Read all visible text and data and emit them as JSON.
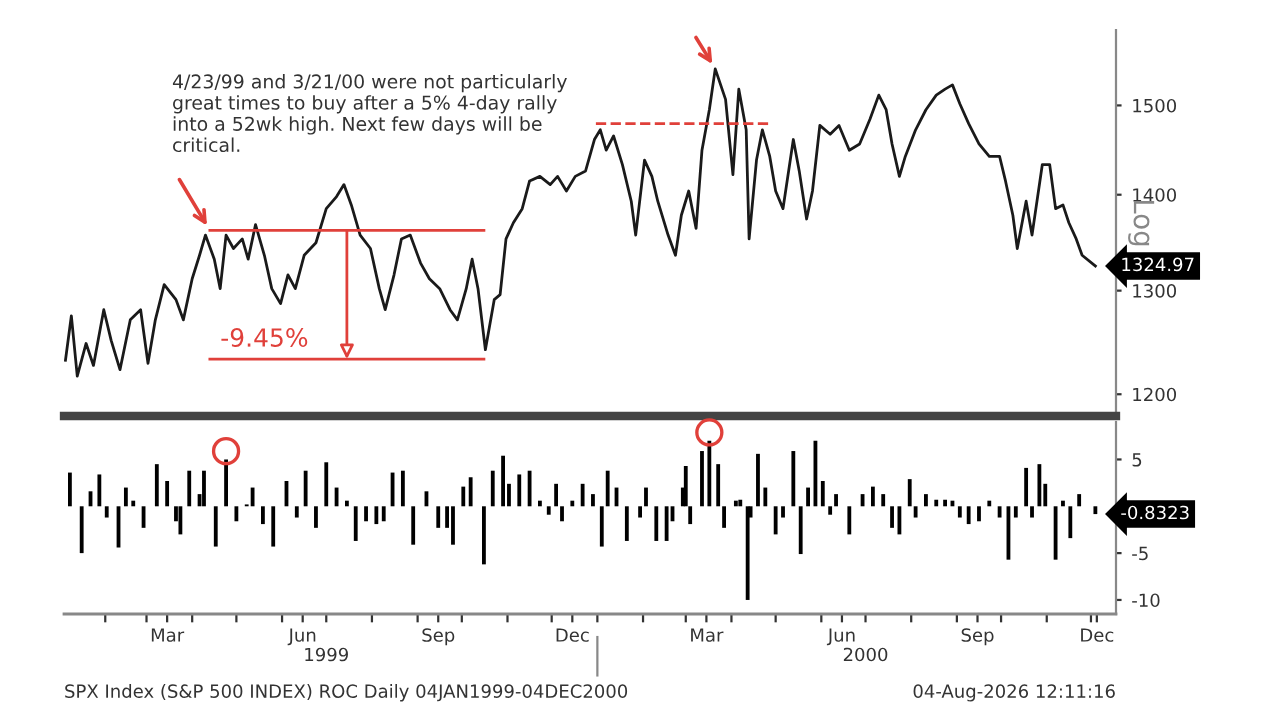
{
  "chart_data": [
    {
      "type": "line",
      "log": true,
      "ylabel": "Log",
      "tick_labels": "y",
      "xlim": [
        "1999-01-04",
        "2000-12-18"
      ],
      "ylim": [
        1180,
        1590
      ],
      "yticks": [
        1200,
        1300,
        1400,
        1500
      ],
      "series": [
        {
          "color": "#1a1a1a",
          "x": [
            "1999-01-05",
            "1999-01-09",
            "1999-01-13",
            "1999-01-19",
            "1999-01-24",
            "1999-01-31",
            "1999-02-05",
            "1999-02-11",
            "1999-02-18",
            "1999-02-25",
            "1999-03-02",
            "1999-03-07",
            "1999-03-13",
            "1999-03-21",
            "1999-03-26",
            "1999-04-01",
            "1999-04-06",
            "1999-04-10",
            "1999-04-16",
            "1999-04-20",
            "1999-04-24",
            "1999-04-29",
            "1999-05-05",
            "1999-05-09",
            "1999-05-14",
            "1999-05-20",
            "1999-05-25",
            "1999-05-31",
            "1999-06-05",
            "1999-06-10",
            "1999-06-16",
            "1999-06-24",
            "1999-07-01",
            "1999-07-08",
            "1999-07-13",
            "1999-07-18",
            "1999-07-24",
            "1999-07-31",
            "1999-08-06",
            "1999-08-10",
            "1999-08-16",
            "1999-08-21",
            "1999-08-27",
            "1999-09-03",
            "1999-09-09",
            "1999-09-16",
            "1999-09-23",
            "1999-09-28",
            "1999-10-04",
            "1999-10-08",
            "1999-10-12",
            "1999-10-17",
            "1999-10-23",
            "1999-10-27",
            "1999-10-31",
            "1999-11-05",
            "1999-11-11",
            "1999-11-16",
            "1999-11-23",
            "1999-11-30",
            "1999-12-05",
            "1999-12-11",
            "1999-12-17",
            "1999-12-24",
            "1999-12-30",
            "2000-01-03",
            "2000-01-07",
            "2000-01-12",
            "2000-01-18",
            "2000-01-24",
            "2000-01-27",
            "2000-02-02",
            "2000-02-07",
            "2000-02-11",
            "2000-02-18",
            "2000-02-23",
            "2000-02-27",
            "2000-03-03",
            "2000-03-08",
            "2000-03-12",
            "2000-03-17",
            "2000-03-21",
            "2000-03-28",
            "2000-04-02",
            "2000-04-06",
            "2000-04-11",
            "2000-04-13",
            "2000-04-18",
            "2000-04-22",
            "2000-04-27",
            "2000-05-01",
            "2000-05-06",
            "2000-05-13",
            "2000-05-17",
            "2000-05-22",
            "2000-05-26",
            "2000-05-31",
            "2000-06-07",
            "2000-06-13",
            "2000-06-20",
            "2000-06-27",
            "2000-07-04",
            "2000-07-10",
            "2000-07-15",
            "2000-07-19",
            "2000-07-24",
            "2000-07-28",
            "2000-08-04",
            "2000-08-11",
            "2000-08-18",
            "2000-08-24",
            "2000-08-29",
            "2000-09-03",
            "2000-09-09",
            "2000-09-16",
            "2000-09-23",
            "2000-09-30",
            "2000-10-04",
            "2000-10-09",
            "2000-10-12",
            "2000-10-18",
            "2000-10-22",
            "2000-10-29",
            "2000-11-03",
            "2000-11-07",
            "2000-11-12",
            "2000-11-16",
            "2000-11-21",
            "2000-11-25",
            "2000-12-04"
          ],
          "values": [
            1232,
            1275,
            1217,
            1248,
            1227,
            1281,
            1251,
            1223,
            1271,
            1281,
            1229,
            1271,
            1306,
            1291,
            1271,
            1312,
            1336,
            1357,
            1332,
            1302,
            1357,
            1343,
            1353,
            1332,
            1368,
            1336,
            1302,
            1287,
            1316,
            1302,
            1336,
            1349,
            1385,
            1398,
            1411,
            1389,
            1357,
            1343,
            1302,
            1281,
            1316,
            1353,
            1357,
            1328,
            1312,
            1302,
            1281,
            1271,
            1302,
            1332,
            1302,
            1242,
            1291,
            1296,
            1353,
            1370,
            1385,
            1415,
            1420,
            1411,
            1420,
            1404,
            1420,
            1426,
            1461,
            1472,
            1449,
            1465,
            1433,
            1393,
            1357,
            1438,
            1420,
            1393,
            1357,
            1336,
            1378,
            1404,
            1364,
            1449,
            1495,
            1543,
            1507,
            1422,
            1519,
            1472,
            1353,
            1438,
            1472,
            1442,
            1404,
            1385,
            1461,
            1426,
            1374,
            1404,
            1477,
            1467,
            1477,
            1449,
            1456,
            1484,
            1512,
            1495,
            1456,
            1420,
            1442,
            1472,
            1495,
            1512,
            1519,
            1524,
            1502,
            1479,
            1456,
            1442,
            1442,
            1415,
            1378,
            1343,
            1393,
            1357,
            1433,
            1433,
            1385,
            1389,
            1370,
            1353,
            1336,
            1324.97
          ],
          "value_labels": [
            null,
            null,
            null,
            null,
            null,
            null,
            null,
            null,
            null,
            null,
            null,
            null,
            null,
            null,
            null,
            null,
            null,
            null,
            null,
            null,
            null,
            null,
            null,
            null,
            null,
            null,
            null,
            null,
            null,
            null,
            null,
            null,
            null,
            null,
            null,
            null,
            null,
            null,
            null,
            null,
            null,
            null,
            null,
            null,
            null,
            null,
            null,
            null,
            null,
            null,
            null,
            null,
            null,
            null,
            null,
            null,
            null,
            null,
            null,
            null,
            null,
            null,
            null,
            null,
            null,
            null,
            null,
            null,
            null,
            null,
            null,
            null,
            null,
            null,
            null,
            null,
            null,
            null,
            null,
            null,
            null,
            null,
            null,
            null,
            null,
            null,
            null,
            null,
            null,
            null,
            null,
            null,
            null,
            null,
            null,
            null,
            null,
            null,
            null,
            null,
            null,
            null,
            null,
            null,
            null,
            null,
            null,
            null,
            null,
            null,
            null,
            null,
            null,
            null,
            null,
            null,
            null,
            null,
            null,
            null,
            null,
            null,
            null,
            null,
            null,
            null,
            null,
            null,
            null,
            "1324.97"
          ]
        },
        {
          "type": "line",
          "color": "#e0403a",
          "x": [
            "1999-04-13",
            "1999-10-16"
          ],
          "values": [
            1362,
            1362
          ]
        },
        {
          "type": "line",
          "color": "#e0403a",
          "x": [
            "1999-04-13",
            "1999-10-16"
          ],
          "values": [
            1233,
            1233
          ]
        },
        {
          "type": "line",
          "color": "#e0403a",
          "line_style": "dashed",
          "x": [
            "1999-12-31",
            "2000-04-27"
          ],
          "values": [
            1479,
            1479
          ]
        }
      ],
      "annotations": [
        "4/23/99 and 3/21/00 were not particularly\ngreat times to buy after a 5% 4-day rally\ninto a 52wk high. Next few days will be\ncritical.",
        {
          "text": "-9.45%",
          "x": "1999-04-20",
          "y": 1240
        }
      ]
    },
    {
      "type": "bar",
      "xlim": [
        "1999-01-04",
        "2000-12-18"
      ],
      "ylim": [
        -11.5,
        9
      ],
      "yticks": [
        5,
        -5,
        -10
      ],
      "xticks": [
        {
          "value": "1999-02-01",
          "label": null
        },
        {
          "value": "1999-03-01",
          "label": null
        },
        {
          "value": "1999-03-15",
          "label": "Mar"
        },
        {
          "value": "1999-04-01",
          "label": null
        },
        {
          "value": "1999-05-01",
          "label": null
        },
        {
          "value": "1999-06-01",
          "label": null
        },
        {
          "value": "1999-06-15",
          "label": "Jun"
        },
        {
          "value": "1999-07-01",
          "label": null
        },
        {
          "value": "1999-08-01",
          "label": null
        },
        {
          "value": "1999-09-01",
          "label": null
        },
        {
          "value": "1999-09-15",
          "label": "Sep"
        },
        {
          "value": "1999-10-01",
          "label": null
        },
        {
          "value": "1999-11-01",
          "label": null
        },
        {
          "value": "1999-12-01",
          "label": null
        },
        {
          "value": "1999-12-15",
          "label": "Dec"
        },
        {
          "value": "2000-01-01",
          "label": null
        },
        {
          "value": "2000-02-01",
          "label": null
        },
        {
          "value": "2000-03-01",
          "label": null
        },
        {
          "value": "2000-03-15",
          "label": "Mar"
        },
        {
          "value": "2000-04-01",
          "label": null
        },
        {
          "value": "2000-05-01",
          "label": null
        },
        {
          "value": "2000-06-01",
          "label": null
        },
        {
          "value": "2000-06-15",
          "label": "Jun"
        },
        {
          "value": "2000-07-01",
          "label": null
        },
        {
          "value": "2000-08-01",
          "label": null
        },
        {
          "value": "2000-09-01",
          "label": null
        },
        {
          "value": "2000-09-15",
          "label": "Sep"
        },
        {
          "value": "2000-10-01",
          "label": null
        },
        {
          "value": "2000-11-01",
          "label": null
        },
        {
          "value": "2000-12-01",
          "label": null
        },
        {
          "value": "2000-12-05",
          "label": "Dec"
        }
      ],
      "x2lim": [
        "1999-01-04",
        "2000-12-18"
      ],
      "x2ticks": [
        {
          "value": "1999-07-01",
          "label": "1999"
        },
        {
          "value": "2000-01-01",
          "label": null
        },
        {
          "value": "2000-07-01",
          "label": "2000"
        }
      ],
      "series": [
        {
          "color": "#000000",
          "x": [
            "1999-01-08",
            "1999-01-16",
            "1999-01-22",
            "1999-01-28",
            "1999-02-02",
            "1999-02-10",
            "1999-02-15",
            "1999-02-20",
            "1999-02-27",
            "1999-03-08",
            "1999-03-15",
            "1999-03-21",
            "1999-03-24",
            "1999-03-30",
            "1999-04-06",
            "1999-04-09",
            "1999-04-17",
            "1999-04-24",
            "1999-05-01",
            "1999-05-08",
            "1999-05-12",
            "1999-05-19",
            "1999-05-26",
            "1999-06-04",
            "1999-06-11",
            "1999-06-17",
            "1999-06-24",
            "1999-07-01",
            "1999-07-08",
            "1999-07-15",
            "1999-07-21",
            "1999-07-28",
            "1999-08-04",
            "1999-08-09",
            "1999-08-15",
            "1999-08-22",
            "1999-08-29",
            "1999-09-07",
            "1999-09-15",
            "1999-09-21",
            "1999-09-25",
            "1999-10-02",
            "1999-10-07",
            "1999-10-16",
            "1999-10-22",
            "1999-10-29",
            "1999-11-02",
            "1999-11-09",
            "1999-11-16",
            "1999-11-23",
            "1999-11-29",
            "1999-12-04",
            "1999-12-08",
            "1999-12-15",
            "1999-12-22",
            "1999-12-29",
            "2000-01-04",
            "2000-01-08",
            "2000-01-14",
            "2000-01-21",
            "2000-01-30",
            "2000-02-03",
            "2000-02-10",
            "2000-02-17",
            "2000-02-21",
            "2000-02-28",
            "2000-03-01",
            "2000-03-04",
            "2000-03-12",
            "2000-03-17",
            "2000-03-23",
            "2000-03-27",
            "2000-04-04",
            "2000-04-07",
            "2000-04-12",
            "2000-04-14",
            "2000-04-19",
            "2000-04-24",
            "2000-05-01",
            "2000-05-06",
            "2000-05-13",
            "2000-05-18",
            "2000-05-23",
            "2000-05-28",
            "2000-06-02",
            "2000-06-07",
            "2000-06-11",
            "2000-06-20",
            "2000-06-29",
            "2000-07-06",
            "2000-07-13",
            "2000-07-19",
            "2000-07-24",
            "2000-07-31",
            "2000-08-04",
            "2000-08-11",
            "2000-08-18",
            "2000-08-24",
            "2000-08-29",
            "2000-09-03",
            "2000-09-09",
            "2000-09-16",
            "2000-09-23",
            "2000-09-30",
            "2000-10-06",
            "2000-10-11",
            "2000-10-18",
            "2000-10-22",
            "2000-10-27",
            "2000-10-31",
            "2000-11-07",
            "2000-11-12",
            "2000-11-17",
            "2000-11-23",
            "2000-12-04"
          ],
          "values": [
            3.6,
            -5,
            1.6,
            3.4,
            -1.2,
            -4.4,
            2,
            0.6,
            -2.3,
            4.5,
            2.7,
            -1.6,
            -3,
            3.8,
            1.3,
            3.8,
            -4.3,
            5,
            -1.6,
            0.2,
            2,
            -1.9,
            -4.3,
            2.7,
            -1.2,
            3.8,
            -2.3,
            4.7,
            2,
            0.6,
            -3.7,
            -1.6,
            -1.9,
            -1.6,
            3.6,
            3.8,
            -4.1,
            1.6,
            -2.3,
            -2.3,
            -4.1,
            2.1,
            3.1,
            -6.2,
            3.8,
            5.4,
            2.4,
            3.4,
            3.8,
            0.6,
            -0.9,
            2.4,
            -1.6,
            0.6,
            2.4,
            1.3,
            -4.3,
            3.8,
            2,
            -3.7,
            -1.2,
            2,
            -3.7,
            -3.7,
            -1.6,
            2,
            4.3,
            -1.9,
            5.9,
            7,
            4.5,
            -2.3,
            0.6,
            0.7,
            -10,
            -1.2,
            5.6,
            2,
            -3,
            -1.2,
            5.9,
            -5.1,
            2,
            7,
            2.7,
            -0.9,
            1.3,
            -3,
            1.3,
            2.1,
            1.3,
            -2.3,
            -3,
            2.9,
            -1.2,
            1.3,
            0.7,
            0.7,
            0.6,
            -1.2,
            -1.9,
            -1.6,
            0.6,
            -1.2,
            -5.7,
            -1.2,
            4.1,
            -1.2,
            4.5,
            2.4,
            -5.7,
            0.6,
            -3.4,
            1.3,
            -0.8323
          ]
        }
      ],
      "annotations": [
        {
          "text": "-0.8323",
          "x": "2000-12-04",
          "y": -0.8323
        },
        "SPX Index (S&P 500 INDEX) ROC Daily 04JAN1999-04DEC2000",
        "04-Aug-2026 12:11:16"
      ]
    }
  ]
}
